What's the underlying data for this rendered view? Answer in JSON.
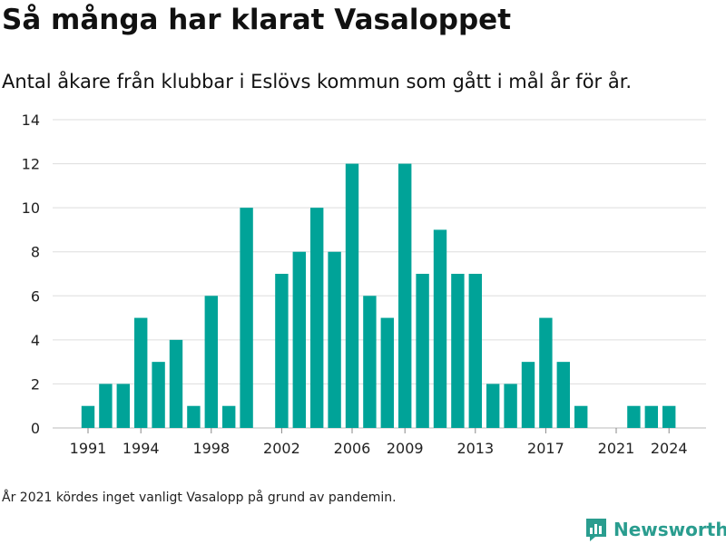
{
  "title": "Så många har klarat Vasaloppet",
  "subtitle": "Antal åkare från klubbar i Eslövs kommun som gått i mål år för år.",
  "footnote": "År 2021 kördes inget vanligt Vasalopp på grund av pandemin.",
  "brand": "Newsworthy",
  "colors": {
    "bar": "#00a398",
    "grid": "#dddddd",
    "brand": "#2a9d8f"
  },
  "chart_data": {
    "type": "bar",
    "categories": [
      1991,
      1992,
      1993,
      1994,
      1995,
      1996,
      1997,
      1998,
      1999,
      2000,
      2001,
      2002,
      2003,
      2004,
      2005,
      2006,
      2007,
      2008,
      2009,
      2010,
      2011,
      2012,
      2013,
      2014,
      2015,
      2016,
      2017,
      2018,
      2019,
      2020,
      2021,
      2022,
      2023,
      2024
    ],
    "values": [
      1,
      2,
      2,
      5,
      3,
      4,
      1,
      6,
      1,
      10,
      0,
      7,
      8,
      10,
      8,
      12,
      6,
      5,
      12,
      7,
      9,
      7,
      7,
      2,
      2,
      3,
      5,
      3,
      1,
      0,
      0,
      1,
      1,
      1
    ],
    "xticks": [
      1991,
      1994,
      1998,
      2002,
      2006,
      2009,
      2013,
      2017,
      2021,
      2024
    ],
    "yticks": [
      0,
      2,
      4,
      6,
      8,
      10,
      12,
      14
    ],
    "ylim": [
      0,
      14
    ],
    "grid": true
  }
}
